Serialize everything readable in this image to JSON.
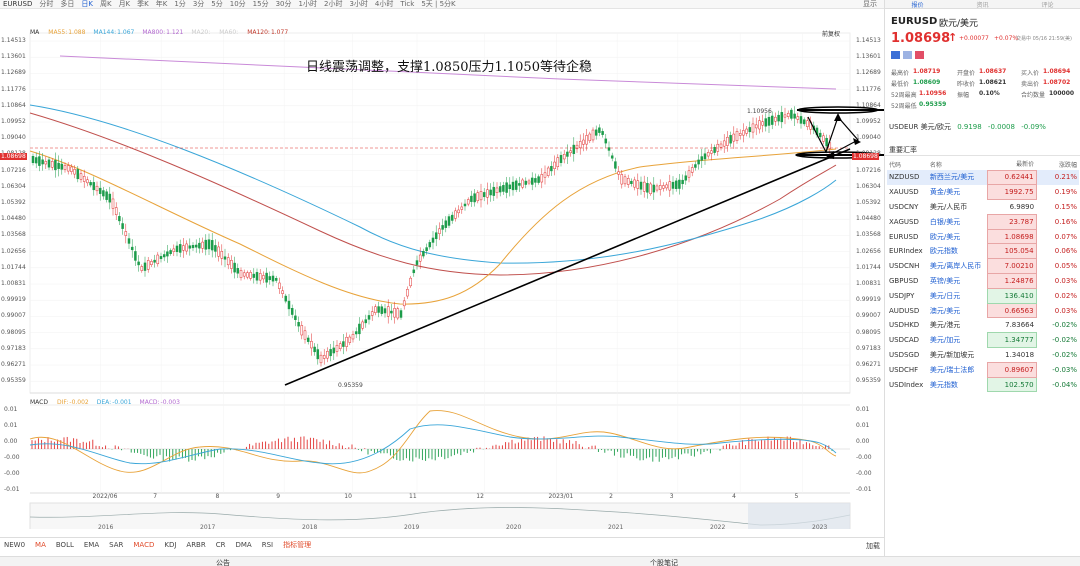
{
  "toolbar": {
    "symbol": "EURUSD",
    "periods": [
      "分时",
      "多日",
      "日K",
      "周K",
      "月K",
      "季K",
      "年K",
      "1分",
      "3分",
      "5分",
      "10分",
      "15分",
      "30分",
      "1小时",
      "2小时",
      "3小时",
      "4小时",
      "Tick",
      "5天 | 5分K"
    ],
    "active_period": "日K",
    "right_items": [
      "显示"
    ]
  },
  "chart": {
    "annotation": "日线震荡调整，支撑1.0850压力1.1050等待企稳",
    "restore_label": "前复权",
    "legend": [
      {
        "label": "MA",
        "value": "",
        "color": "#333333"
      },
      {
        "label": "MA55:",
        "value": "1.088",
        "color": "#e8a33a"
      },
      {
        "label": "MA144:",
        "value": "1.067",
        "color": "#3aa6d8"
      },
      {
        "label": "MA800:",
        "value": "1.121",
        "color": "#b36ad0"
      },
      {
        "label": "MA20:",
        "value": "",
        "color": "#cccccc"
      },
      {
        "label": "MA60:",
        "value": "",
        "color": "#cccccc"
      },
      {
        "label": "MA120:",
        "value": "1.077",
        "color": "#c0392b"
      }
    ],
    "y_ticks": [
      "1.14513",
      "1.13601",
      "1.12689",
      "1.11776",
      "1.10864",
      "1.09952",
      "1.09040",
      "1.08128",
      "1.07216",
      "1.06304",
      "1.05392",
      "1.04480",
      "1.03568",
      "1.02656",
      "1.01744",
      "1.00831",
      "0.99919",
      "0.99007",
      "0.98095",
      "0.97183",
      "0.96271",
      "0.95359"
    ],
    "current_price_label": "1.08698",
    "high_label": "1.10956",
    "low_label": "0.95359",
    "x_ticks": [
      "2022/06",
      "7",
      "8",
      "9",
      "10",
      "11",
      "12",
      "2023/01",
      "2",
      "3",
      "4",
      "5"
    ],
    "x_positions_percent": [
      8.6,
      16,
      23.6,
      31,
      39.3,
      47.2,
      55.4,
      64.2,
      71.6,
      79,
      86.6,
      94.2
    ],
    "macd_legend": [
      {
        "label": "MACD",
        "value": "",
        "color": "#333333"
      },
      {
        "label": "DIF:",
        "value": "-0.002",
        "color": "#e8a33a"
      },
      {
        "label": "DEA:",
        "value": "-0.001",
        "color": "#3aa6d8"
      },
      {
        "label": "MACD:",
        "value": "-0.003",
        "color": "#b36ad0"
      }
    ],
    "macd_ticks": [
      "0.01",
      "0.01",
      "0.00",
      "-0.00",
      "-0.00",
      "-0.01"
    ],
    "overview_years": [
      "2016",
      "2017",
      "2018",
      "2019",
      "2020",
      "2021",
      "2022",
      "2023"
    ]
  },
  "bottom_tabs": [
    "NEW0",
    "MA",
    "BOLL",
    "EMA",
    "SAR",
    "MACD",
    "KDJ",
    "ARBR",
    "CR",
    "DMA",
    "RSI",
    "指标管理"
  ],
  "bottom_right": "加载",
  "status_bar": {
    "left": "公告",
    "right": "个股笔记"
  },
  "panel": {
    "tabs": [
      "报价",
      "资讯",
      "评论"
    ],
    "symbol": "EURUSD",
    "name": "欧元/美元",
    "price": "1.08698",
    "arrow": "↑",
    "change": "+0.00077",
    "change_pct": "+0.07%",
    "time": "交易中 05/16 21:59(美)",
    "stats": [
      {
        "label": "最高价",
        "value": "1.08719",
        "cls": "up"
      },
      {
        "label": "开盘价",
        "value": "1.08637",
        "cls": "up"
      },
      {
        "label": "买入价",
        "value": "1.08694",
        "cls": "up"
      },
      {
        "label": "最低价",
        "value": "1.08609",
        "cls": "down"
      },
      {
        "label": "昨收价",
        "value": "1.08621",
        "cls": "plain"
      },
      {
        "label": "卖出价",
        "value": "1.08702",
        "cls": "up"
      },
      {
        "label": "52周最高",
        "value": "1.10956",
        "cls": "up"
      },
      {
        "label": "振幅",
        "value": "0.10%",
        "cls": "plain"
      },
      {
        "label": "合约数量",
        "value": "100000",
        "cls": "plain"
      },
      {
        "label": "52周最低",
        "value": "0.95359",
        "cls": "down"
      }
    ],
    "related": {
      "label": "USDEUR 美元/欧元",
      "price": "0.9198",
      "change": "-0.0008",
      "pct": "-0.09%"
    },
    "watchlist_title": "重要汇率",
    "headers": [
      "代码",
      "名称",
      "最新价",
      "涨跌幅"
    ],
    "rows": [
      {
        "code": "NZDUSD",
        "name": "新西兰元/美元",
        "price": "0.62441",
        "pct": "0.21%",
        "style": "red",
        "selected": true
      },
      {
        "code": "XAUUSD",
        "name": "黄金/美元",
        "price": "1992.75",
        "pct": "0.19%",
        "style": "red",
        "selected": false
      },
      {
        "code": "USDCNY",
        "name": "美元/人民币",
        "price": "6.9890",
        "pct": "0.15%",
        "style": "plain",
        "selected": false
      },
      {
        "code": "XAGUSD",
        "name": "白银/美元",
        "price": "23.787",
        "pct": "0.16%",
        "style": "red",
        "selected": false
      },
      {
        "code": "EURUSD",
        "name": "欧元/美元",
        "price": "1.08698",
        "pct": "0.07%",
        "style": "red",
        "selected": false
      },
      {
        "code": "EURIndex",
        "name": "欧元指数",
        "price": "105.054",
        "pct": "0.06%",
        "style": "red",
        "selected": false
      },
      {
        "code": "USDCNH",
        "name": "美元/离岸人民币",
        "price": "7.00210",
        "pct": "0.05%",
        "style": "red",
        "selected": false
      },
      {
        "code": "GBPUSD",
        "name": "英镑/美元",
        "price": "1.24876",
        "pct": "0.03%",
        "style": "red",
        "selected": false
      },
      {
        "code": "USDJPY",
        "name": "美元/日元",
        "price": "136.410",
        "pct": "0.02%",
        "style": "green",
        "selected": false
      },
      {
        "code": "AUDUSD",
        "name": "澳元/美元",
        "price": "0.66563",
        "pct": "0.03%",
        "style": "red",
        "selected": false
      },
      {
        "code": "USDHKD",
        "name": "美元/港元",
        "price": "7.83664",
        "pct": "-0.02%",
        "style": "plain",
        "selected": false
      },
      {
        "code": "USDCAD",
        "name": "美元/加元",
        "price": "1.34777",
        "pct": "-0.02%",
        "style": "green",
        "selected": false
      },
      {
        "code": "USDSGD",
        "name": "美元/新加坡元",
        "price": "1.34018",
        "pct": "-0.02%",
        "style": "plain",
        "selected": false
      },
      {
        "code": "USDCHF",
        "name": "美元/瑞士法郎",
        "price": "0.89607",
        "pct": "-0.03%",
        "style": "red",
        "selected": false
      },
      {
        "code": "USDIndex",
        "name": "美元指数",
        "price": "102.570",
        "pct": "-0.04%",
        "style": "green",
        "selected": false
      }
    ]
  }
}
